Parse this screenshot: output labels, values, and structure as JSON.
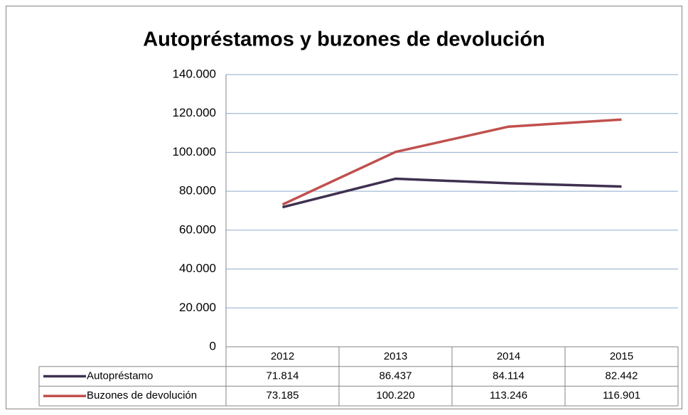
{
  "chart_data": {
    "type": "line",
    "title": "Autopréstamos y buzones de devolución",
    "categories": [
      "2012",
      "2013",
      "2014",
      "2015"
    ],
    "series": [
      {
        "name": "Autopréstamo",
        "color": "#3f3151",
        "values": [
          71814,
          86437,
          84114,
          82442
        ],
        "value_labels": [
          "71.814",
          "86.437",
          "84.114",
          "82.442"
        ]
      },
      {
        "name": "Buzones de devolución",
        "color": "#c0504d",
        "values": [
          73185,
          100220,
          113246,
          116901
        ],
        "value_labels": [
          "73.185",
          "100.220",
          "113.246",
          "116.901"
        ]
      }
    ],
    "ylim": [
      0,
      140000
    ],
    "yticks": [
      0,
      {
        "value": 20000,
        "label": "20.000"
      },
      {
        "value": 40000,
        "label": "40.000"
      },
      {
        "value": 60000,
        "label": "60.000"
      },
      {
        "value": 80000,
        "label": "80.000"
      },
      {
        "value": 100000,
        "label": "100.000"
      },
      {
        "value": 120000,
        "label": "120.000"
      },
      {
        "value": 140000,
        "label": "140.000"
      }
    ],
    "grid": true,
    "legend": "table"
  }
}
